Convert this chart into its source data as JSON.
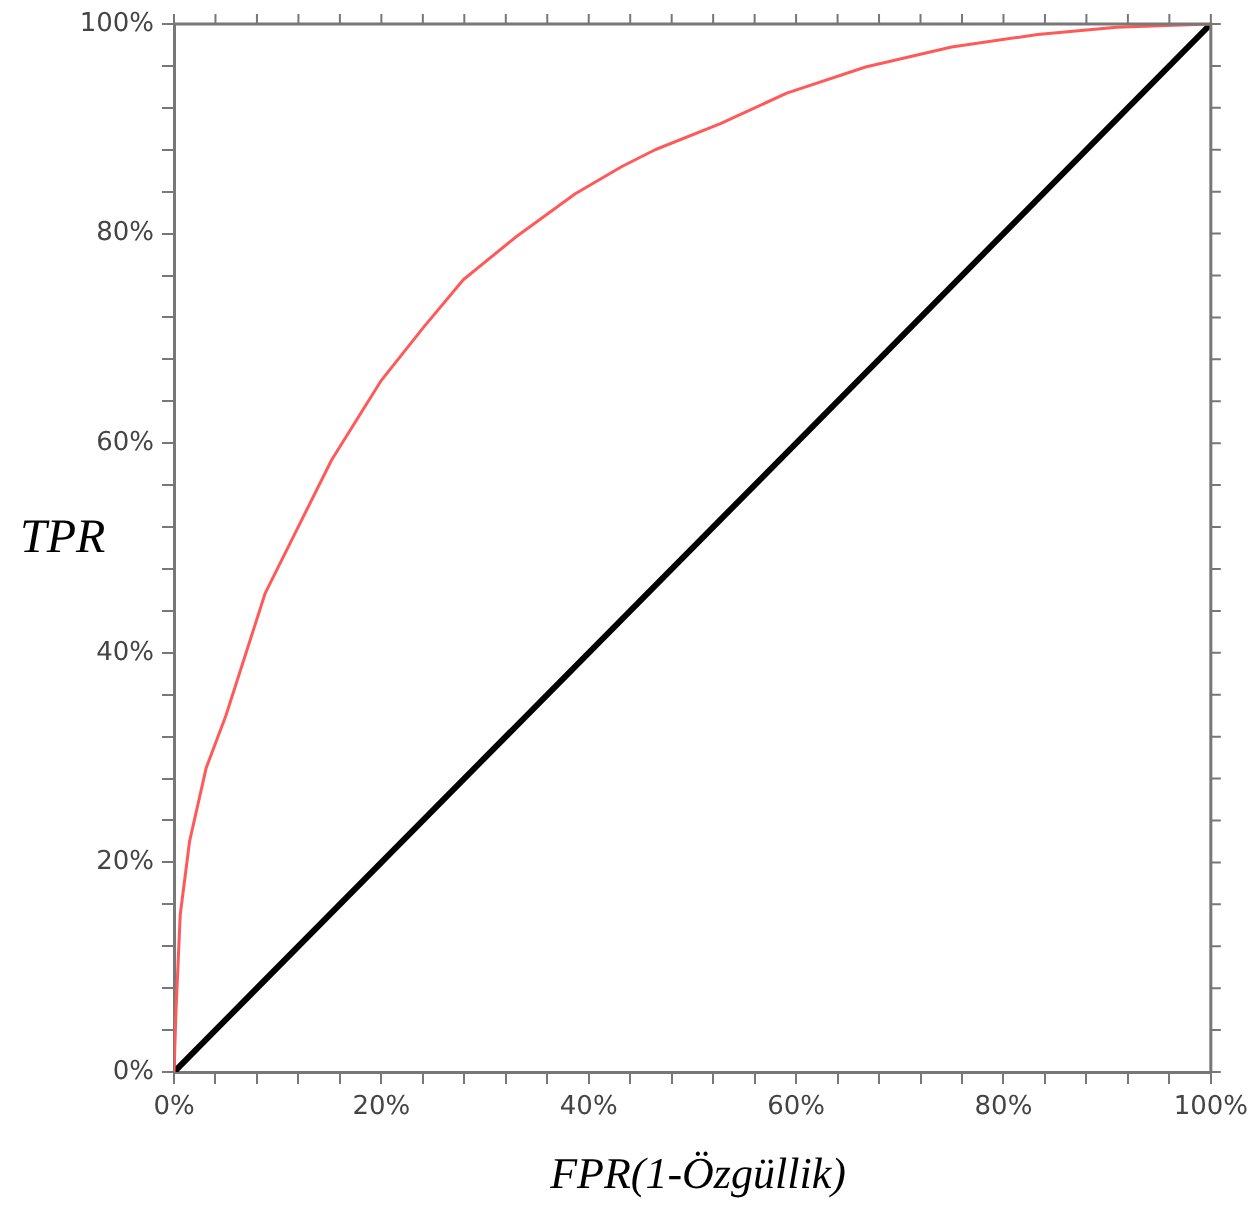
{
  "chart_data": {
    "type": "line",
    "xlabel": "FPR(1-Özgüllik)",
    "ylabel": "TPR",
    "series": [
      {
        "color": "#ff5a5a",
        "x": [
          0,
          0.2,
          0.6,
          1.5,
          3.1,
          5,
          8.8,
          15.2,
          20,
          24.1,
          27.9,
          33,
          38.7,
          43.2,
          46.4,
          52.7,
          59.1,
          66.7,
          75,
          83.3,
          90.9,
          100
        ],
        "values": [
          0,
          6,
          15,
          22,
          29,
          34,
          45.7,
          58.4,
          66,
          71.1,
          75.6,
          79.7,
          83.8,
          86.4,
          88,
          90.5,
          93.4,
          95.9,
          97.8,
          99,
          99.7,
          100
        ]
      },
      {
        "color": "#000000",
        "x": [
          0,
          100
        ],
        "values": [
          0,
          100
        ]
      }
    ],
    "xlim": [
      0,
      100
    ],
    "ylim": [
      0,
      100
    ],
    "xticks": [
      {
        "value": 0,
        "label": "0%"
      },
      {
        "value": 4,
        "label": null
      },
      {
        "value": 8,
        "label": null
      },
      {
        "value": 12,
        "label": null
      },
      {
        "value": 16,
        "label": null
      },
      {
        "value": 20,
        "label": "20%"
      },
      {
        "value": 24,
        "label": null
      },
      {
        "value": 28,
        "label": null
      },
      {
        "value": 32,
        "label": null
      },
      {
        "value": 36,
        "label": null
      },
      {
        "value": 40,
        "label": "40%"
      },
      {
        "value": 44,
        "label": null
      },
      {
        "value": 48,
        "label": null
      },
      {
        "value": 52,
        "label": null
      },
      {
        "value": 56,
        "label": null
      },
      {
        "value": 60,
        "label": "60%"
      },
      {
        "value": 64,
        "label": null
      },
      {
        "value": 68,
        "label": null
      },
      {
        "value": 72,
        "label": null
      },
      {
        "value": 76,
        "label": null
      },
      {
        "value": 80,
        "label": "80%"
      },
      {
        "value": 84,
        "label": null
      },
      {
        "value": 88,
        "label": null
      },
      {
        "value": 92,
        "label": null
      },
      {
        "value": 96,
        "label": null
      },
      {
        "value": 100,
        "label": "100%"
      }
    ],
    "yticks": [
      {
        "value": 0,
        "label": "0%"
      },
      {
        "value": 4,
        "label": null
      },
      {
        "value": 8,
        "label": null
      },
      {
        "value": 12,
        "label": null
      },
      {
        "value": 16,
        "label": null
      },
      {
        "value": 20,
        "label": "20%"
      },
      {
        "value": 24,
        "label": null
      },
      {
        "value": 28,
        "label": null
      },
      {
        "value": 32,
        "label": null
      },
      {
        "value": 36,
        "label": null
      },
      {
        "value": 40,
        "label": "40%"
      },
      {
        "value": 44,
        "label": null
      },
      {
        "value": 48,
        "label": null
      },
      {
        "value": 52,
        "label": null
      },
      {
        "value": 56,
        "label": null
      },
      {
        "value": 60,
        "label": "60%"
      },
      {
        "value": 64,
        "label": null
      },
      {
        "value": 68,
        "label": null
      },
      {
        "value": 72,
        "label": null
      },
      {
        "value": 76,
        "label": null
      },
      {
        "value": 80,
        "label": "80%"
      },
      {
        "value": 84,
        "label": null
      },
      {
        "value": 88,
        "label": null
      },
      {
        "value": 92,
        "label": null
      },
      {
        "value": 96,
        "label": null
      },
      {
        "value": 100,
        "label": "100%"
      }
    ],
    "grid": false,
    "legend": false,
    "marker": "none",
    "line_style": "solid"
  }
}
